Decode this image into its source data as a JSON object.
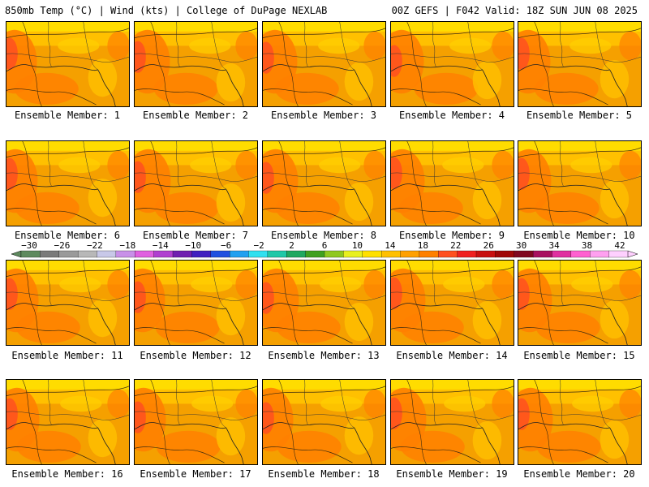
{
  "header": {
    "left": "850mb Temp (°C) | Wind (kts) | College of DuPage NEXLAB",
    "right": "00Z GEFS | F042 Valid: 18Z SUN JUN 08 2025"
  },
  "members": [
    "Ensemble Member: 1",
    "Ensemble Member: 2",
    "Ensemble Member: 3",
    "Ensemble Member: 4",
    "Ensemble Member: 5",
    "Ensemble Member: 6",
    "Ensemble Member: 7",
    "Ensemble Member: 8",
    "Ensemble Member: 9",
    "Ensemble Member: 10",
    "Ensemble Member: 11",
    "Ensemble Member: 12",
    "Ensemble Member: 13",
    "Ensemble Member: 14",
    "Ensemble Member: 15",
    "Ensemble Member: 16",
    "Ensemble Member: 17",
    "Ensemble Member: 18",
    "Ensemble Member: 19",
    "Ensemble Member: 20"
  ],
  "colorbar": {
    "ticks": [
      "−30",
      "−26",
      "−22",
      "−18",
      "−14",
      "−10",
      "−6",
      "−2",
      "2",
      "6",
      "10",
      "14",
      "18",
      "22",
      "26",
      "30",
      "34",
      "38",
      "42"
    ],
    "colors": [
      "#5e8a5e",
      "#7a7a7a",
      "#9a9a9a",
      "#b8b8b8",
      "#c8c8e8",
      "#c890e8",
      "#e060e0",
      "#b040d0",
      "#7020b0",
      "#4020c0",
      "#2050e0",
      "#20a0f0",
      "#30e0f0",
      "#20c8a8",
      "#20a860",
      "#40a020",
      "#90c820",
      "#e8f020",
      "#ffe000",
      "#ffc000",
      "#ffa000",
      "#ff8000",
      "#ff5020",
      "#f02020",
      "#c81010",
      "#a00808",
      "#800820",
      "#a81060",
      "#e030a0",
      "#ff60d0",
      "#ffa0f0",
      "#ffd0ff"
    ]
  }
}
